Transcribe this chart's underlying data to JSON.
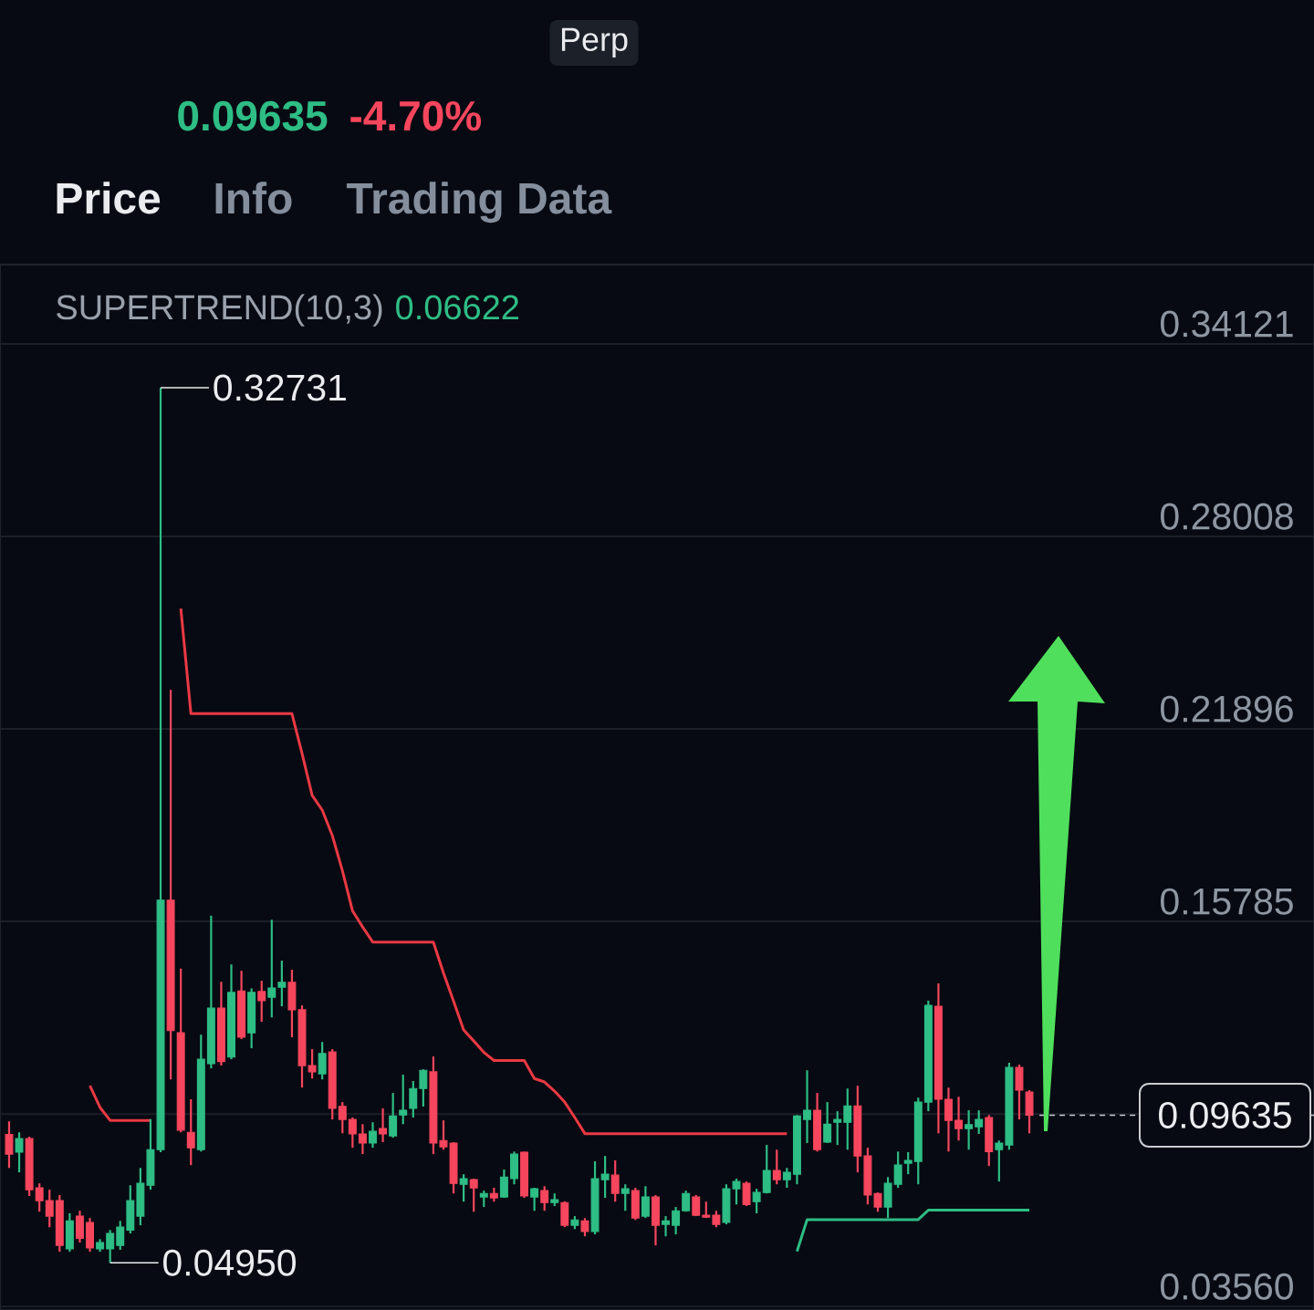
{
  "chart_data": {
    "type": "candlestick",
    "annotations": [
      "Perp",
      "0.09635",
      "-4.70%",
      "Price",
      "Info",
      "Trading Data",
      "SUPERTREND(10,3)",
      "0.06622",
      "0.32731",
      "0.04950"
    ],
    "categories": [
      null,
      null,
      null,
      null,
      null,
      null,
      null,
      null,
      null,
      null,
      null,
      null,
      null,
      null,
      null,
      null,
      null,
      null,
      null,
      null,
      null,
      null,
      null,
      null,
      null,
      null,
      null,
      null,
      null,
      null,
      null,
      null,
      null,
      null,
      null,
      null,
      null,
      null,
      null,
      null,
      null,
      null,
      null,
      null,
      null,
      null,
      null,
      null,
      null,
      null,
      null,
      null,
      null,
      null,
      null,
      null,
      null,
      null,
      null,
      null,
      null,
      null,
      null,
      null,
      null,
      null,
      null,
      null,
      null,
      null,
      null,
      null,
      null,
      null,
      null,
      null,
      null,
      null,
      null,
      null,
      null,
      null,
      null,
      null,
      null,
      null,
      null,
      null,
      null,
      null,
      null,
      null,
      null,
      null,
      null,
      null,
      null,
      null,
      null,
      null,
      null,
      null
    ],
    "ohlc": [
      [
        0.0902,
        0.0944,
        0.0796,
        0.084
      ],
      [
        0.0846,
        0.0909,
        0.0782,
        0.0889
      ],
      [
        0.0889,
        0.0895,
        0.0707,
        0.0727
      ],
      [
        0.0733,
        0.0747,
        0.0657,
        0.0692
      ],
      [
        0.0692,
        0.0727,
        0.0608,
        0.0643
      ],
      [
        0.0692,
        0.071,
        0.053,
        0.055
      ],
      [
        0.0539,
        0.0652,
        0.053,
        0.0628
      ],
      [
        0.0643,
        0.066,
        0.0559,
        0.0573
      ],
      [
        0.0623,
        0.0637,
        0.053,
        0.0542
      ],
      [
        0.0539,
        0.057,
        0.053,
        0.0559
      ],
      [
        0.0539,
        0.0599,
        0.0495,
        0.0588
      ],
      [
        0.055,
        0.0628,
        0.0536,
        0.0608
      ],
      [
        0.0599,
        0.0741,
        0.0588,
        0.0692
      ],
      [
        0.0643,
        0.0796,
        0.0614,
        0.0747
      ],
      [
        0.0741,
        0.0951,
        0.0727,
        0.0854
      ],
      [
        0.0854,
        0.32731,
        0.0846,
        0.1646
      ],
      [
        0.1646,
        0.2314,
        0.1077,
        0.1232
      ],
      [
        0.1225,
        0.1429,
        0.0909,
        0.0916
      ],
      [
        0.0909,
        0.1014,
        0.0805,
        0.086
      ],
      [
        0.0854,
        0.1219,
        0.0848,
        0.1141
      ],
      [
        0.1127,
        0.1597,
        0.1112,
        0.1303
      ],
      [
        0.1303,
        0.1387,
        0.1121,
        0.1134
      ],
      [
        0.1148,
        0.1442,
        0.1141,
        0.1353
      ],
      [
        0.1358,
        0.1422,
        0.1205,
        0.1211
      ],
      [
        0.1225,
        0.1366,
        0.1176,
        0.1353
      ],
      [
        0.1356,
        0.139,
        0.126,
        0.1327
      ],
      [
        0.1338,
        0.1584,
        0.1274,
        0.1367
      ],
      [
        0.137,
        0.1454,
        0.1309,
        0.1385
      ],
      [
        0.1385,
        0.1425,
        0.1211,
        0.1298
      ],
      [
        0.1298,
        0.1312,
        0.1051,
        0.1121
      ],
      [
        0.1121,
        0.1173,
        0.108,
        0.1101
      ],
      [
        0.1095,
        0.1196,
        0.1077,
        0.1159
      ],
      [
        0.1164,
        0.1173,
        0.095,
        0.0985
      ],
      [
        0.0991,
        0.1005,
        0.0906,
        0.095
      ],
      [
        0.095,
        0.0956,
        0.086,
        0.0904
      ],
      [
        0.0904,
        0.0935,
        0.084,
        0.0875
      ],
      [
        0.0875,
        0.0941,
        0.086,
        0.0912
      ],
      [
        0.0921,
        0.0985,
        0.0878,
        0.0904
      ],
      [
        0.0898,
        0.1034,
        0.0892,
        0.0961
      ],
      [
        0.0964,
        0.1092,
        0.0935,
        0.0979
      ],
      [
        0.0985,
        0.1072,
        0.0956,
        0.1048
      ],
      [
        0.1048,
        0.1109,
        0.0991,
        0.1106
      ],
      [
        0.1101,
        0.115,
        0.084,
        0.0875
      ],
      [
        0.0883,
        0.0947,
        0.0854,
        0.0863
      ],
      [
        0.0875,
        0.0878,
        0.0715,
        0.0747
      ],
      [
        0.0744,
        0.0776,
        0.0689,
        0.0762
      ],
      [
        0.0759,
        0.0762,
        0.0657,
        0.0733
      ],
      [
        0.0704,
        0.0724,
        0.0672,
        0.0715
      ],
      [
        0.0715,
        0.0733,
        0.0689,
        0.0701
      ],
      [
        0.0704,
        0.0791,
        0.0701,
        0.0767
      ],
      [
        0.0762,
        0.0848,
        0.0744,
        0.084
      ],
      [
        0.0846,
        0.0848,
        0.0701,
        0.0707
      ],
      [
        0.0704,
        0.0733,
        0.066,
        0.073
      ],
      [
        0.0724,
        0.0738,
        0.066,
        0.0686
      ],
      [
        0.0686,
        0.0715,
        0.0675,
        0.0695
      ],
      [
        0.0686,
        0.069,
        0.0608,
        0.0614
      ],
      [
        0.0614,
        0.0643,
        0.0602,
        0.0631
      ],
      [
        0.0628,
        0.0637,
        0.0579,
        0.0594
      ],
      [
        0.0594,
        0.0817,
        0.0585,
        0.0762
      ],
      [
        0.0759,
        0.0834,
        0.0701,
        0.0776
      ],
      [
        0.0773,
        0.082,
        0.0689,
        0.0715
      ],
      [
        0.0715,
        0.0744,
        0.066,
        0.073
      ],
      [
        0.0724,
        0.0733,
        0.0631,
        0.0637
      ],
      [
        0.0643,
        0.0738,
        0.0637,
        0.0704
      ],
      [
        0.0704,
        0.071,
        0.055,
        0.0614
      ],
      [
        0.0617,
        0.0643,
        0.0579,
        0.0628
      ],
      [
        0.0614,
        0.0672,
        0.0585,
        0.066
      ],
      [
        0.066,
        0.0724,
        0.0657,
        0.0715
      ],
      [
        0.0704,
        0.071,
        0.0643,
        0.0646
      ],
      [
        0.0646,
        0.0689,
        0.0637,
        0.064
      ],
      [
        0.0646,
        0.066,
        0.0608,
        0.0617
      ],
      [
        0.0623,
        0.0744,
        0.0617,
        0.073
      ],
      [
        0.073,
        0.0762,
        0.068,
        0.0753
      ],
      [
        0.0747,
        0.0753,
        0.0675,
        0.068
      ],
      [
        0.0689,
        0.073,
        0.0652,
        0.0718
      ],
      [
        0.0718,
        0.0869,
        0.0715,
        0.0788
      ],
      [
        0.0788,
        0.0854,
        0.0744,
        0.0759
      ],
      [
        0.0759,
        0.0796,
        0.0733,
        0.0782
      ],
      [
        0.0776,
        0.0964,
        0.0744,
        0.0961
      ],
      [
        0.095,
        0.1106,
        0.0875,
        0.0979
      ],
      [
        0.0979,
        0.1034,
        0.0848,
        0.0854
      ],
      [
        0.0878,
        0.1005,
        0.0875,
        0.0935
      ],
      [
        0.0941,
        0.0976,
        0.0869,
        0.095
      ],
      [
        0.0941,
        0.1048,
        0.0854,
        0.0993
      ],
      [
        0.0993,
        0.1057,
        0.0782,
        0.0834
      ],
      [
        0.0834,
        0.086,
        0.068,
        0.071
      ],
      [
        0.0715,
        0.0718,
        0.0657,
        0.0672
      ],
      [
        0.0672,
        0.0767,
        0.0637,
        0.0747
      ],
      [
        0.0744,
        0.0848,
        0.0733,
        0.0805
      ],
      [
        0.0811,
        0.0846,
        0.0776,
        0.082
      ],
      [
        0.0817,
        0.1019,
        0.0744,
        0.1005
      ],
      [
        0.1005,
        0.1327,
        0.0976,
        0.1312
      ],
      [
        0.1309,
        0.1382,
        0.0906,
        0.1014
      ],
      [
        0.1014,
        0.1051,
        0.0848,
        0.0947
      ],
      [
        0.0947,
        0.1022,
        0.0883,
        0.0921
      ],
      [
        0.0921,
        0.0979,
        0.0854,
        0.0933
      ],
      [
        0.0927,
        0.0979,
        0.0904,
        0.095
      ],
      [
        0.0956,
        0.0964,
        0.0802,
        0.0848
      ],
      [
        0.0854,
        0.0883,
        0.0753,
        0.0875
      ],
      [
        0.0869,
        0.113,
        0.0854,
        0.1115
      ],
      [
        0.1115,
        0.1124,
        0.095,
        0.1043
      ],
      [
        0.1037,
        0.1043,
        0.0906,
        0.09635
      ]
    ],
    "colors": [
      "#f6465d",
      "#2ebd85",
      "#f6465d",
      "#f6465d",
      "#f6465d",
      "#f6465d",
      "#2ebd85",
      "#f6465d",
      "#f6465d",
      "#2ebd85",
      "#2ebd85",
      "#2ebd85",
      "#2ebd85",
      "#2ebd85",
      "#2ebd85",
      "#2ebd85",
      "#f6465d",
      "#f6465d",
      "#f6465d",
      "#2ebd85",
      "#2ebd85",
      "#f6465d",
      "#2ebd85",
      "#f6465d",
      "#2ebd85",
      "#f6465d",
      "#2ebd85",
      "#2ebd85",
      "#f6465d",
      "#f6465d",
      "#f6465d",
      "#2ebd85",
      "#f6465d",
      "#f6465d",
      "#f6465d",
      "#f6465d",
      "#2ebd85",
      "#f6465d",
      "#2ebd85",
      "#2ebd85",
      "#2ebd85",
      "#2ebd85",
      "#f6465d",
      "#f6465d",
      "#f6465d",
      "#2ebd85",
      "#f6465d",
      "#2ebd85",
      "#f6465d",
      "#2ebd85",
      "#2ebd85",
      "#f6465d",
      "#2ebd85",
      "#f6465d",
      "#2ebd85",
      "#f6465d",
      "#2ebd85",
      "#f6465d",
      "#2ebd85",
      "#2ebd85",
      "#f6465d",
      "#2ebd85",
      "#f6465d",
      "#2ebd85",
      "#f6465d",
      "#2ebd85",
      "#2ebd85",
      "#2ebd85",
      "#f6465d",
      "#f6465d",
      "#f6465d",
      "#2ebd85",
      "#2ebd85",
      "#f6465d",
      "#2ebd85",
      "#2ebd85",
      "#f6465d",
      "#2ebd85",
      "#2ebd85",
      "#2ebd85",
      "#f6465d",
      "#2ebd85",
      "#2ebd85",
      "#2ebd85",
      "#f6465d",
      "#f6465d",
      "#f6465d",
      "#2ebd85",
      "#2ebd85",
      "#2ebd85",
      "#2ebd85",
      "#2ebd85",
      "#f6465d",
      "#f6465d",
      "#f6465d",
      "#2ebd85",
      "#2ebd85",
      "#f6465d",
      "#2ebd85",
      "#2ebd85",
      "#f6465d",
      "#f6465d"
    ],
    "series": [
      {
        "type": "line",
        "color": "#ea3943",
        "values": [
          null,
          null,
          null,
          null,
          null,
          null,
          null,
          null,
          0.1057,
          0.0988,
          0.0947,
          0.0947,
          0.0947,
          0.0947,
          0.0947,
          null,
          null,
          0.2572,
          0.2238,
          0.2238,
          0.2238,
          0.2238,
          0.2238,
          0.2238,
          0.2238,
          0.2238,
          0.2238,
          0.2238,
          0.2238,
          0.2112,
          0.1979,
          0.1932,
          0.1851,
          0.1739,
          0.1612,
          0.1561,
          0.1513,
          0.1513,
          0.1513,
          0.1513,
          0.1513,
          0.1513,
          0.1513,
          0.1415,
          0.1325,
          0.1234,
          0.1199,
          0.1163,
          0.1137,
          0.1137,
          0.1137,
          0.1137,
          0.108,
          0.1069,
          0.104,
          0.1005,
          0.0956,
          0.0905,
          0.0905,
          0.0905,
          0.0905,
          0.0905,
          0.0905,
          0.0905,
          0.0905,
          0.0905,
          0.0905,
          0.0905,
          0.0905,
          0.0905,
          0.0905,
          0.0905,
          0.0905,
          0.0905,
          0.0905,
          0.0905,
          0.0905,
          0.0905,
          null,
          null,
          null,
          null,
          null,
          null,
          null,
          null,
          null,
          null,
          null,
          null,
          null,
          null,
          null,
          null,
          null,
          null,
          null,
          null,
          null,
          null,
          null,
          null
        ]
      },
      {
        "type": "line",
        "color": "#2ebd85",
        "values": [
          null,
          null,
          null,
          null,
          null,
          null,
          null,
          null,
          null,
          null,
          null,
          null,
          null,
          null,
          null,
          null,
          null,
          null,
          null,
          null,
          null,
          null,
          null,
          null,
          null,
          null,
          null,
          null,
          null,
          null,
          null,
          null,
          null,
          null,
          null,
          null,
          null,
          null,
          null,
          null,
          null,
          null,
          null,
          null,
          null,
          null,
          null,
          null,
          null,
          null,
          null,
          null,
          null,
          null,
          null,
          null,
          null,
          null,
          null,
          null,
          null,
          null,
          null,
          null,
          null,
          null,
          null,
          null,
          null,
          null,
          null,
          null,
          null,
          null,
          null,
          null,
          null,
          null,
          0.0531,
          0.0632,
          0.0632,
          0.0632,
          0.0632,
          0.0632,
          0.0632,
          0.0632,
          0.0632,
          0.0632,
          0.0632,
          0.0632,
          0.0632,
          0.06622,
          0.06622,
          0.06622,
          0.06622,
          0.06622,
          0.06622,
          0.06622,
          0.06622,
          0.06622,
          0.06622,
          0.06622
        ]
      }
    ],
    "ylim": [
      0.0345,
      0.3664
    ],
    "yticks": [
      0.34121,
      0.28008,
      0.21896,
      0.15785,
      {
        "value": 0.09673,
        "label": null
      },
      {
        "value": 0.0356,
        "label": "0.03560"
      }
    ],
    "grid": "y",
    "ref_lines": [
      {
        "axis": "y",
        "value": 0.09635,
        "label": "0.09635",
        "line_style": "dashed",
        "color": "#c9ccd1"
      }
    ]
  }
}
